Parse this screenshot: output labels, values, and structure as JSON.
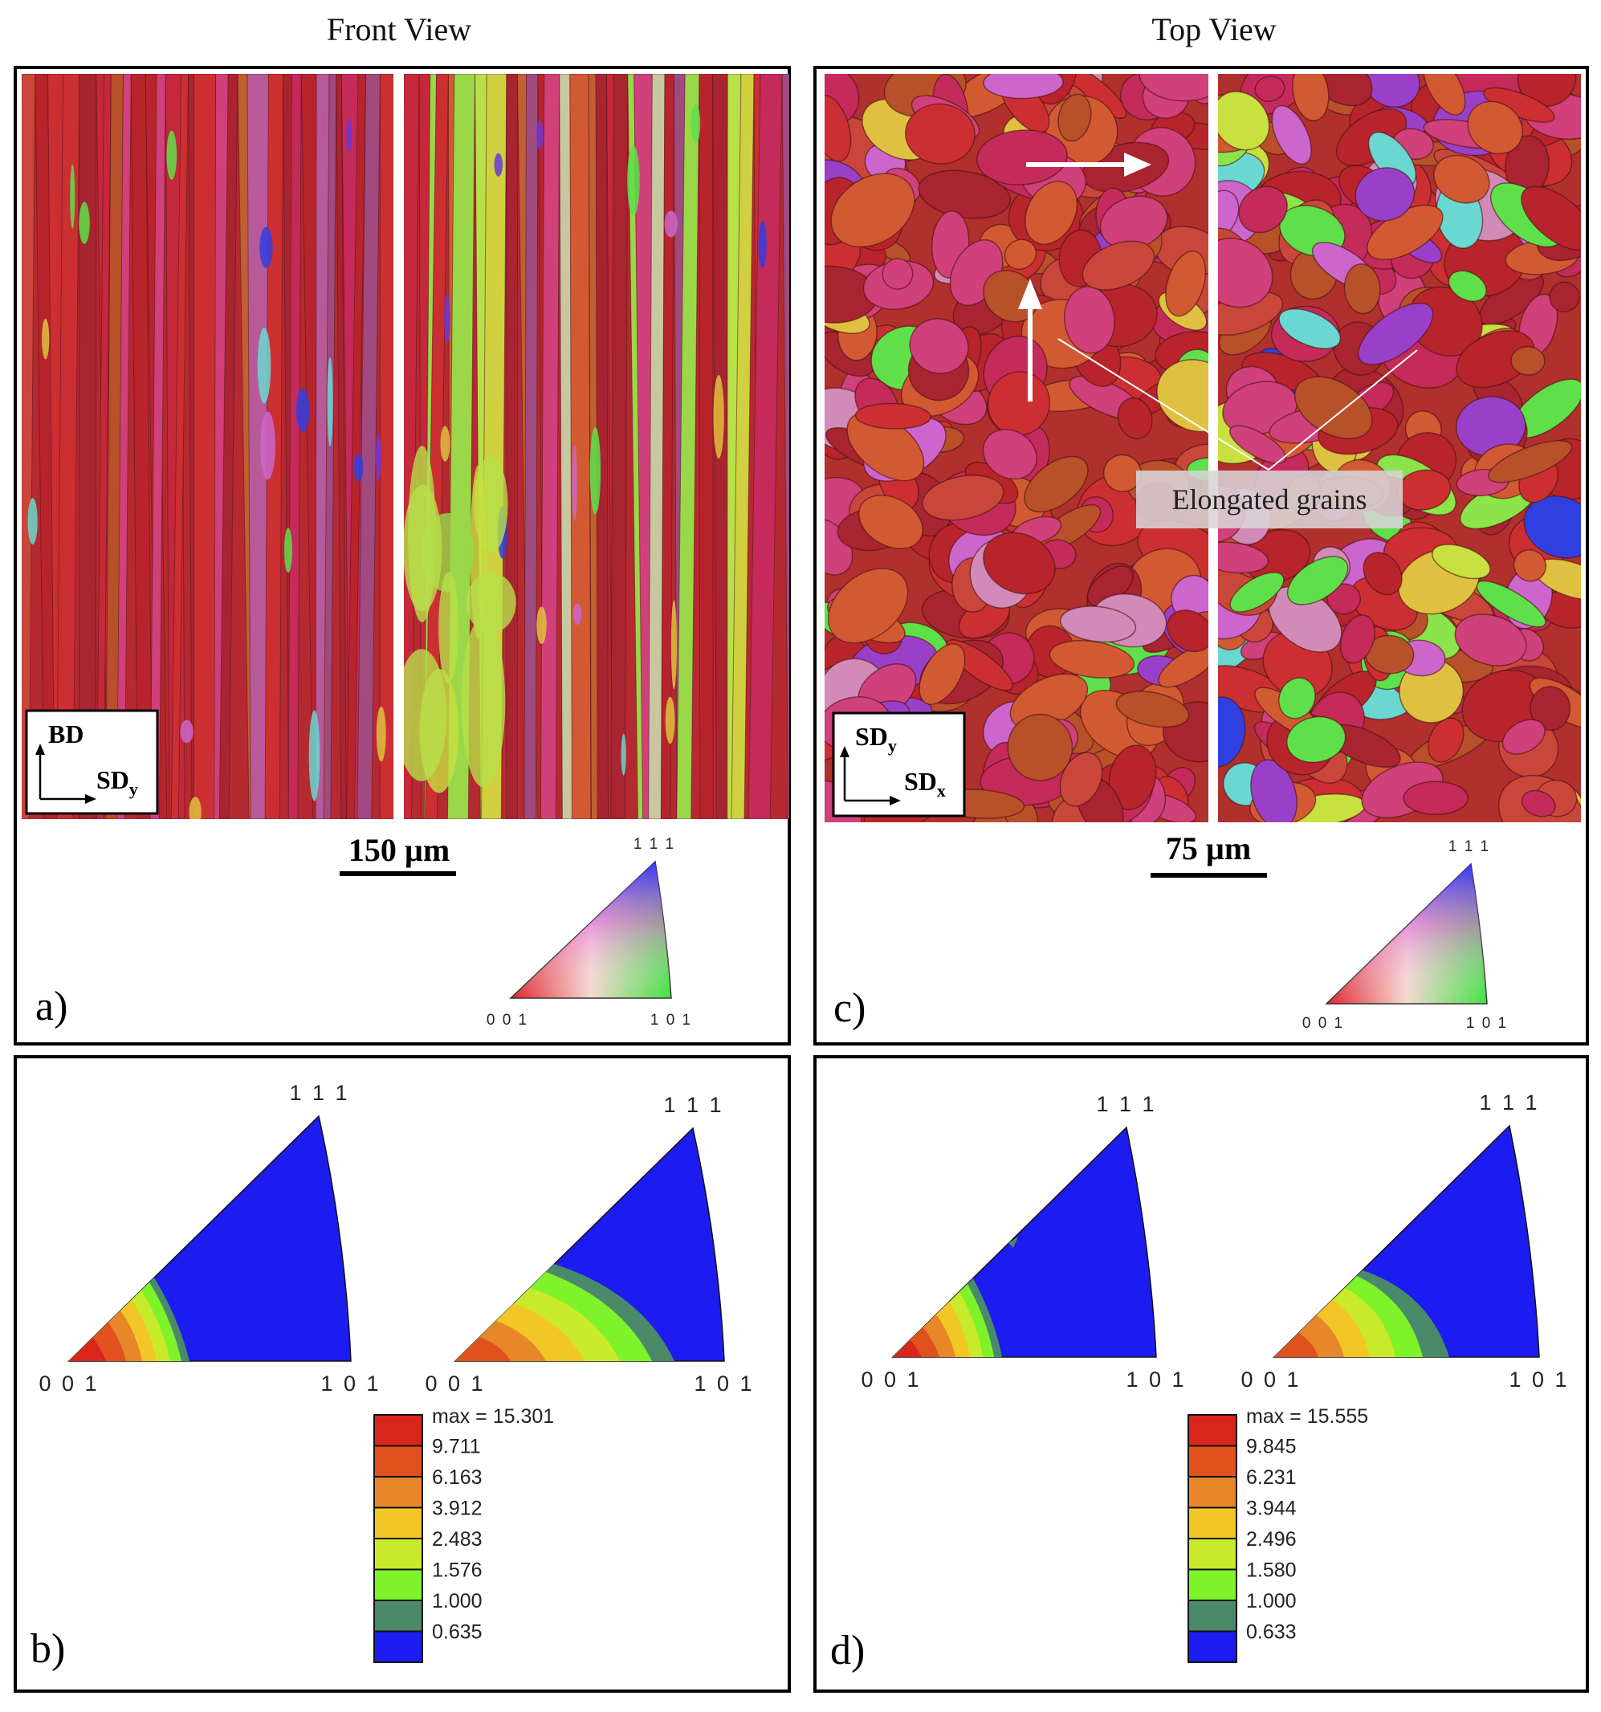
{
  "headers": {
    "front": "Front View",
    "top": "Top View"
  },
  "panel_a": {
    "label": "a)",
    "scale_bar": "150 µm",
    "axes": {
      "vertical": "BD",
      "horizontal_base": "SD",
      "horizontal_sub": "y"
    }
  },
  "panel_c": {
    "label": "c)",
    "scale_bar": "75 µm",
    "annotation": "Elongated grains",
    "axes": {
      "vertical_base": "SD",
      "vertical_sub": "y",
      "horizontal_base": "SD",
      "horizontal_sub": "x"
    }
  },
  "key_triangle": {
    "top": "1 1 1",
    "left": "0 0 1",
    "right": "1 0 1"
  },
  "panel_b": {
    "label": "b)",
    "legend": {
      "max_label": "max = 15.301",
      "levels": [
        "9.711",
        "6.163",
        "3.912",
        "2.483",
        "1.576",
        "1.000",
        "0.635"
      ]
    }
  },
  "panel_d": {
    "label": "d)",
    "legend": {
      "max_label": "max = 15.555",
      "levels": [
        "9.845",
        "6.231",
        "3.944",
        "2.496",
        "1.580",
        "1.000",
        "0.633"
      ]
    }
  },
  "ipf_corners": {
    "top": "1 1 1",
    "left": "0 0 1",
    "right": "1 0 1"
  },
  "colors": {
    "legend": [
      "#d9261c",
      "#e0511e",
      "#e8862a",
      "#f2c627",
      "#c8ea2a",
      "#7ef32a",
      "#4a8a6a",
      "#1c1cf0"
    ],
    "map_palette": [
      "#b8242c",
      "#cc2f32",
      "#a82430",
      "#c9473a",
      "#d25a33",
      "#b8502a",
      "#c42a5a",
      "#d0407a",
      "#b85a9a",
      "#cc66cc",
      "#9a40c8",
      "#6a3ad8",
      "#3040e0",
      "#5fe04a",
      "#8ae44a",
      "#c8e040",
      "#e0c040",
      "#6ad8d0",
      "#d28ab8",
      "#d8a070"
    ]
  }
}
